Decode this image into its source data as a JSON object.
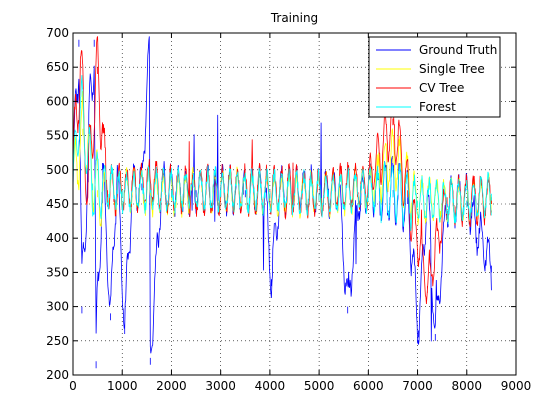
{
  "chart_data": {
    "type": "line",
    "title": "Training",
    "xlabel": "",
    "ylabel": "",
    "xlim": [
      0,
      9000
    ],
    "ylim": [
      200,
      700
    ],
    "x_ticks": [
      0,
      1000,
      2000,
      3000,
      4000,
      5000,
      6000,
      7000,
      8000,
      9000
    ],
    "y_ticks": [
      200,
      250,
      300,
      350,
      400,
      450,
      500,
      550,
      600,
      650,
      700
    ],
    "x_tick_labels": [
      "0",
      "1000",
      "2000",
      "3000",
      "4000",
      "5000",
      "6000",
      "7000",
      "8000",
      "9000"
    ],
    "y_tick_labels": [
      "200",
      "250",
      "300",
      "350",
      "400",
      "450",
      "500",
      "550",
      "600",
      "650",
      "700"
    ],
    "grid": true,
    "grid_style": "dotted",
    "legend_position": "top-right",
    "n_points": 8500,
    "series": [
      {
        "name": "Ground Truth",
        "color": "#0000ff",
        "samples": [
          [
            0,
            470
          ],
          [
            120,
            690
          ],
          [
            180,
            300
          ],
          [
            300,
            520
          ],
          [
            430,
            690
          ],
          [
            470,
            220
          ],
          [
            600,
            510
          ],
          [
            760,
            290
          ],
          [
            900,
            500
          ],
          [
            1050,
            270
          ],
          [
            1200,
            470
          ],
          [
            1400,
            480
          ],
          [
            1550,
            680
          ],
          [
            1570,
            225
          ],
          [
            1800,
            480
          ],
          [
            2000,
            470
          ],
          [
            2500,
            470
          ],
          [
            3000,
            470
          ],
          [
            3500,
            470
          ],
          [
            3900,
            470
          ],
          [
            4030,
            340
          ],
          [
            4200,
            470
          ],
          [
            4800,
            470
          ],
          [
            5000,
            465
          ],
          [
            5400,
            470
          ],
          [
            5580,
            300
          ],
          [
            5800,
            460
          ],
          [
            6000,
            470
          ],
          [
            6500,
            470
          ],
          [
            6800,
            460
          ],
          [
            7020,
            265
          ],
          [
            7200,
            470
          ],
          [
            7360,
            260
          ],
          [
            7600,
            455
          ],
          [
            8000,
            455
          ],
          [
            8500,
            360
          ]
        ]
      },
      {
        "name": "Single Tree",
        "color": "#ffff00",
        "samples": [
          [
            0,
            480
          ],
          [
            200,
            560
          ],
          [
            500,
            470
          ],
          [
            1000,
            470
          ],
          [
            2000,
            465
          ],
          [
            3000,
            470
          ],
          [
            4000,
            465
          ],
          [
            5000,
            465
          ],
          [
            6000,
            470
          ],
          [
            6500,
            520
          ],
          [
            7000,
            455
          ],
          [
            8000,
            455
          ],
          [
            8500,
            460
          ]
        ]
      },
      {
        "name": "CV Tree",
        "color": "#ff0000",
        "samples": [
          [
            0,
            500
          ],
          [
            150,
            660
          ],
          [
            300,
            470
          ],
          [
            500,
            650
          ],
          [
            700,
            470
          ],
          [
            1000,
            470
          ],
          [
            1500,
            480
          ],
          [
            2000,
            470
          ],
          [
            3000,
            470
          ],
          [
            4000,
            470
          ],
          [
            5000,
            465
          ],
          [
            6000,
            480
          ],
          [
            6500,
            575
          ],
          [
            6800,
            470
          ],
          [
            7200,
            330
          ],
          [
            7600,
            460
          ],
          [
            8000,
            455
          ],
          [
            8500,
            460
          ]
        ]
      },
      {
        "name": "Forest",
        "color": "#00ffff",
        "samples": [
          [
            0,
            480
          ],
          [
            150,
            600
          ],
          [
            400,
            480
          ],
          [
            1000,
            470
          ],
          [
            2000,
            470
          ],
          [
            3000,
            470
          ],
          [
            4000,
            468
          ],
          [
            5000,
            465
          ],
          [
            6000,
            470
          ],
          [
            6500,
            470
          ],
          [
            7000,
            455
          ],
          [
            8000,
            455
          ],
          [
            8500,
            465
          ]
        ]
      }
    ]
  }
}
